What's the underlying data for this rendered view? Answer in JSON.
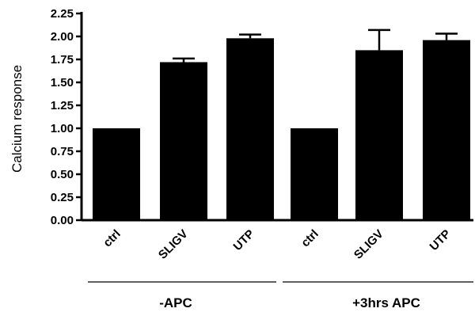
{
  "chart_data": {
    "type": "bar",
    "title": "",
    "xlabel": "",
    "ylabel": "Calcium response",
    "ylim": [
      0,
      2.25
    ],
    "yticks": [
      "0.00",
      "0.25",
      "0.50",
      "0.75",
      "1.00",
      "1.25",
      "1.50",
      "1.75",
      "2.00",
      "2.25"
    ],
    "grid": false,
    "legend": "none",
    "bar_color": "#000000",
    "categories": [
      "ctrl",
      "SLIGV",
      "UTP",
      "ctrl",
      "SLIGV",
      "UTP"
    ],
    "values": [
      1.0,
      1.72,
      1.98,
      1.0,
      1.85,
      1.96
    ],
    "error": [
      0,
      0.04,
      0.04,
      0,
      0.22,
      0.07
    ],
    "groups": [
      {
        "label": "-APC",
        "members": [
          0,
          1,
          2
        ]
      },
      {
        "label": "+3hrs APC",
        "members": [
          3,
          4,
          5
        ]
      }
    ]
  }
}
